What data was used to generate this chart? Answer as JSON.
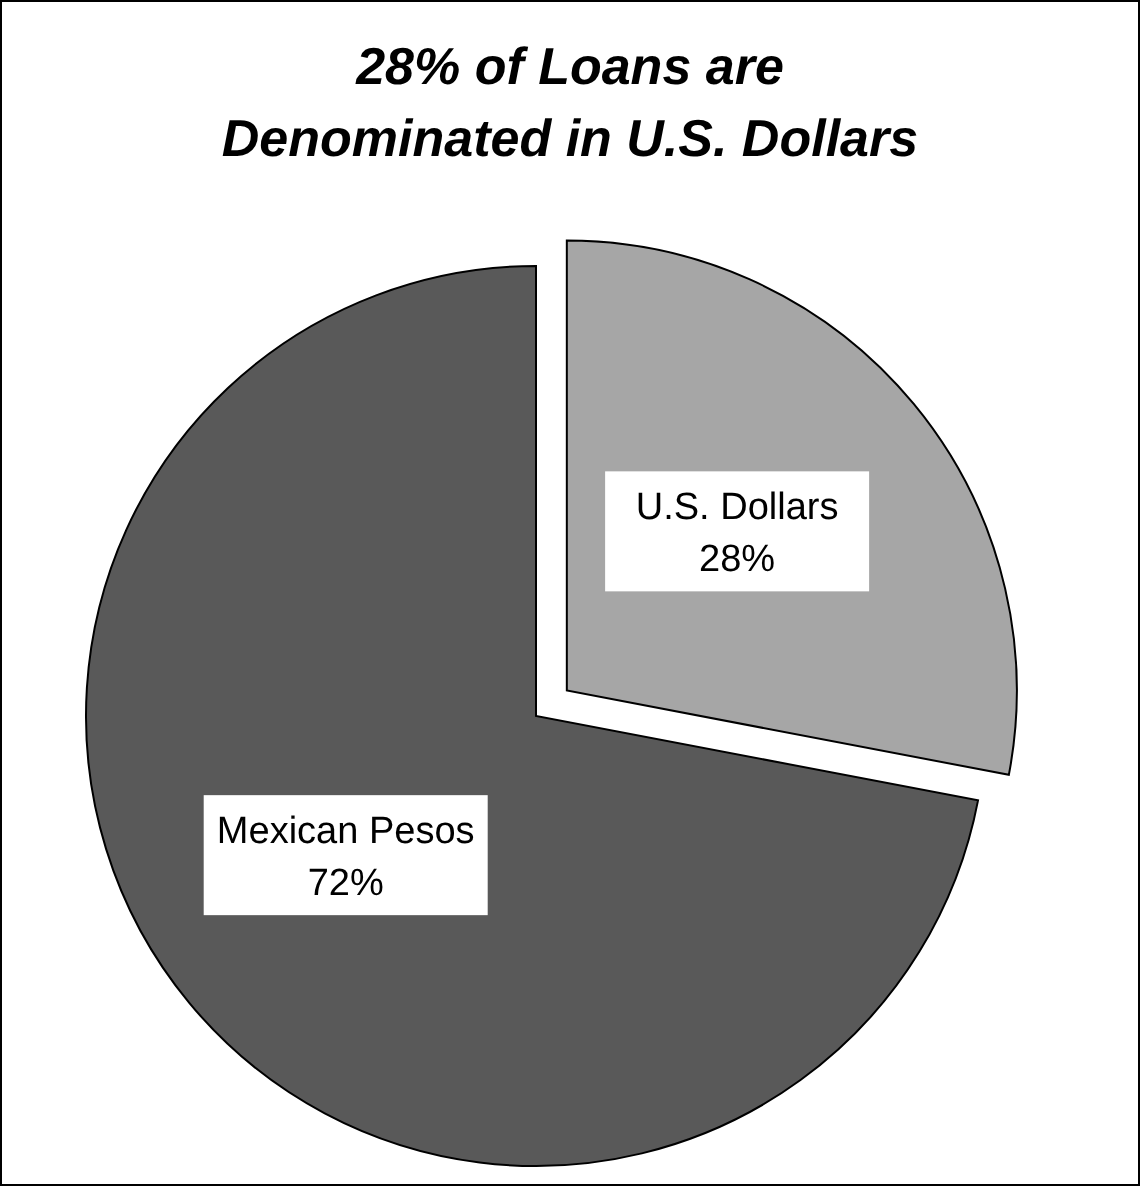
{
  "chart_data": {
    "type": "pie",
    "title": "28% of Loans are Denominated in U.S. Dollars",
    "categories": [
      "U.S. Dollars",
      "Mexican Pesos"
    ],
    "values": [
      28,
      72
    ],
    "colors": [
      "#a6a6a6",
      "#595959"
    ],
    "value_labels": [
      "28%",
      "72%"
    ]
  }
}
